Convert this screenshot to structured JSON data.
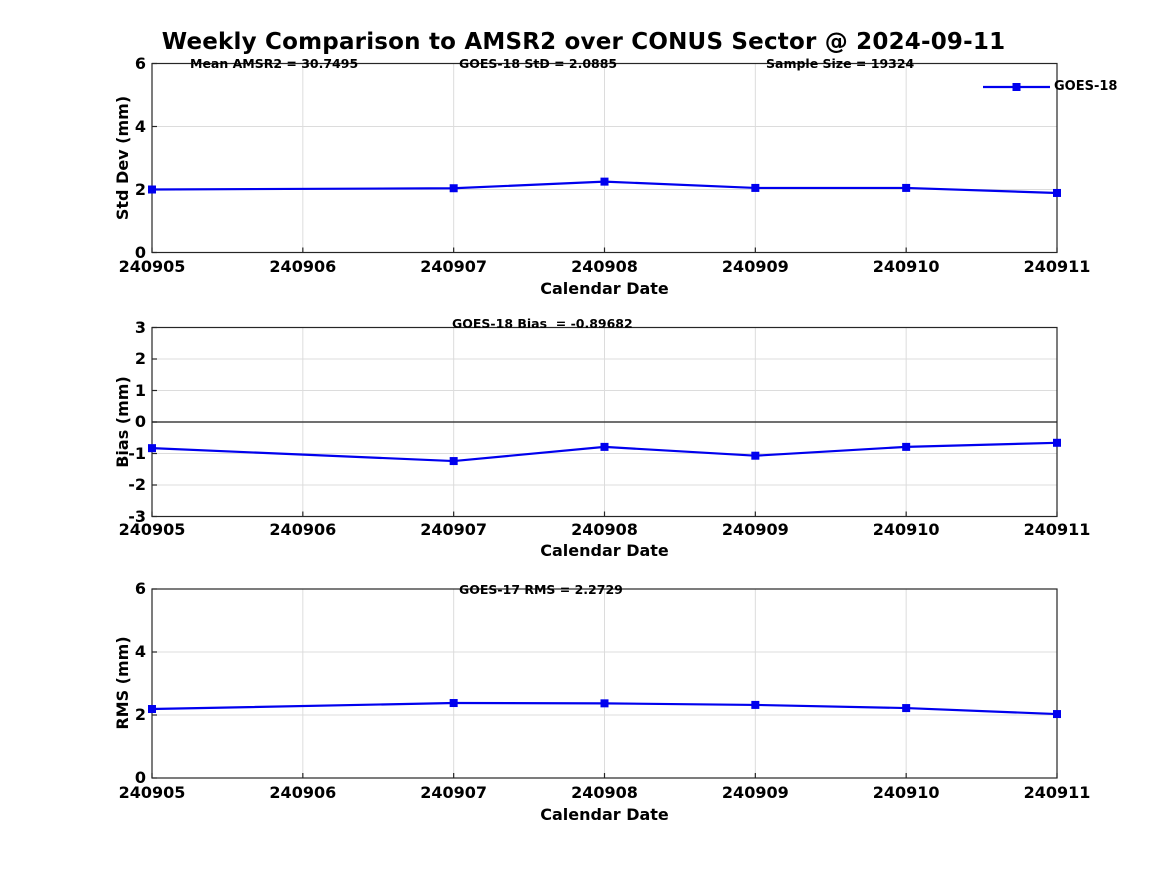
{
  "title": "Weekly Comparison to AMSR2 over CONUS Sector @ 2024-09-11",
  "legend": {
    "label": "GOES-18"
  },
  "colors": {
    "line": "#0000ee",
    "grid": "#dcdcdc",
    "axis": "#262626",
    "zero_line": "#404040",
    "text": "#000000"
  },
  "chart_data": [
    {
      "type": "line",
      "panel": "std-dev",
      "annotations": [
        "Mean AMSR2 = 30.7495",
        "GOES-18 StD = 2.0885",
        "Sample Size = 19324"
      ],
      "ylabel": "Std Dev (mm)",
      "xlabel": "Calendar Date",
      "ylim": [
        0,
        6
      ],
      "yticks": [
        0,
        2,
        4,
        6
      ],
      "xlim": [
        240905,
        240911
      ],
      "xticklabels": [
        "240905",
        "240906",
        "240907",
        "240908",
        "240909",
        "240910",
        "240911"
      ],
      "grid": true,
      "legend_position": "upper-right-outside",
      "series": [
        {
          "name": "GOES-18",
          "marker": "square",
          "x": [
            240905,
            240907,
            240908,
            240909,
            240910,
            240911
          ],
          "values": [
            2.0,
            2.04,
            2.25,
            2.05,
            2.05,
            1.89
          ]
        }
      ]
    },
    {
      "type": "line",
      "panel": "bias",
      "annotations": [
        "GOES-18 Bias  = -0.89682"
      ],
      "ylabel": "Bias (mm)",
      "xlabel": "Calendar Date",
      "ylim": [
        -3,
        3
      ],
      "yticks": [
        -3,
        -2,
        -1,
        0,
        1,
        2,
        3
      ],
      "xlim": [
        240905,
        240911
      ],
      "xticklabels": [
        "240905",
        "240906",
        "240907",
        "240908",
        "240909",
        "240910",
        "240911"
      ],
      "grid": true,
      "zero_line": true,
      "series": [
        {
          "name": "GOES-18",
          "marker": "square",
          "x": [
            240905,
            240907,
            240908,
            240909,
            240910,
            240911
          ],
          "values": [
            -0.83,
            -1.24,
            -0.79,
            -1.07,
            -0.79,
            -0.66
          ]
        }
      ]
    },
    {
      "type": "line",
      "panel": "rms",
      "annotations": [
        "GOES-17 RMS = 2.2729"
      ],
      "ylabel": "RMS (mm)",
      "xlabel": "Calendar Date",
      "ylim": [
        0,
        6
      ],
      "yticks": [
        0,
        2,
        4,
        6
      ],
      "xlim": [
        240905,
        240911
      ],
      "xticklabels": [
        "240905",
        "240906",
        "240907",
        "240908",
        "240909",
        "240910",
        "240911"
      ],
      "grid": true,
      "series": [
        {
          "name": "GOES-18",
          "marker": "square",
          "x": [
            240905,
            240907,
            240908,
            240909,
            240910,
            240911
          ],
          "values": [
            2.19,
            2.38,
            2.37,
            2.32,
            2.22,
            2.03
          ]
        }
      ]
    }
  ]
}
